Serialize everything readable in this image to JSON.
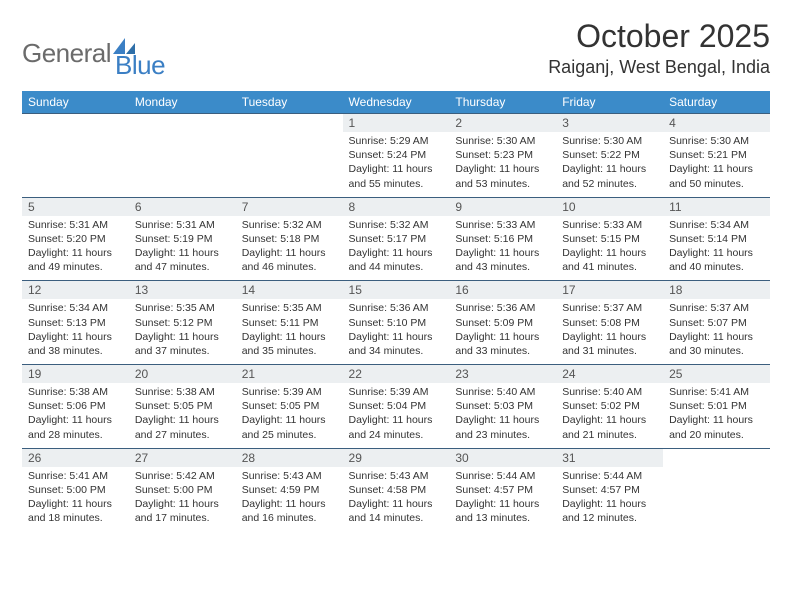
{
  "brand": {
    "part1": "General",
    "part2": "Blue"
  },
  "title": "October 2025",
  "location": "Raiganj, West Bengal, India",
  "colors": {
    "header_blue": "#3b8bc9",
    "row_border": "#3b5e7e",
    "daynum_bg": "#eceff1",
    "logo_gray": "#6b6b6b",
    "logo_blue": "#3b7fc4",
    "text": "#333333",
    "bg": "#ffffff"
  },
  "font": {
    "family": "Arial",
    "th_size": 12,
    "cell_size": 10.5,
    "title_size": 32,
    "loc_size": 18
  },
  "weekdays": [
    "Sunday",
    "Monday",
    "Tuesday",
    "Wednesday",
    "Thursday",
    "Friday",
    "Saturday"
  ],
  "weeks": [
    [
      null,
      null,
      null,
      {
        "n": "1",
        "sr": "5:29 AM",
        "ss": "5:24 PM",
        "dh": "11",
        "dm": "55"
      },
      {
        "n": "2",
        "sr": "5:30 AM",
        "ss": "5:23 PM",
        "dh": "11",
        "dm": "53"
      },
      {
        "n": "3",
        "sr": "5:30 AM",
        "ss": "5:22 PM",
        "dh": "11",
        "dm": "52"
      },
      {
        "n": "4",
        "sr": "5:30 AM",
        "ss": "5:21 PM",
        "dh": "11",
        "dm": "50"
      }
    ],
    [
      {
        "n": "5",
        "sr": "5:31 AM",
        "ss": "5:20 PM",
        "dh": "11",
        "dm": "49"
      },
      {
        "n": "6",
        "sr": "5:31 AM",
        "ss": "5:19 PM",
        "dh": "11",
        "dm": "47"
      },
      {
        "n": "7",
        "sr": "5:32 AM",
        "ss": "5:18 PM",
        "dh": "11",
        "dm": "46"
      },
      {
        "n": "8",
        "sr": "5:32 AM",
        "ss": "5:17 PM",
        "dh": "11",
        "dm": "44"
      },
      {
        "n": "9",
        "sr": "5:33 AM",
        "ss": "5:16 PM",
        "dh": "11",
        "dm": "43"
      },
      {
        "n": "10",
        "sr": "5:33 AM",
        "ss": "5:15 PM",
        "dh": "11",
        "dm": "41"
      },
      {
        "n": "11",
        "sr": "5:34 AM",
        "ss": "5:14 PM",
        "dh": "11",
        "dm": "40"
      }
    ],
    [
      {
        "n": "12",
        "sr": "5:34 AM",
        "ss": "5:13 PM",
        "dh": "11",
        "dm": "38"
      },
      {
        "n": "13",
        "sr": "5:35 AM",
        "ss": "5:12 PM",
        "dh": "11",
        "dm": "37"
      },
      {
        "n": "14",
        "sr": "5:35 AM",
        "ss": "5:11 PM",
        "dh": "11",
        "dm": "35"
      },
      {
        "n": "15",
        "sr": "5:36 AM",
        "ss": "5:10 PM",
        "dh": "11",
        "dm": "34"
      },
      {
        "n": "16",
        "sr": "5:36 AM",
        "ss": "5:09 PM",
        "dh": "11",
        "dm": "33"
      },
      {
        "n": "17",
        "sr": "5:37 AM",
        "ss": "5:08 PM",
        "dh": "11",
        "dm": "31"
      },
      {
        "n": "18",
        "sr": "5:37 AM",
        "ss": "5:07 PM",
        "dh": "11",
        "dm": "30"
      }
    ],
    [
      {
        "n": "19",
        "sr": "5:38 AM",
        "ss": "5:06 PM",
        "dh": "11",
        "dm": "28"
      },
      {
        "n": "20",
        "sr": "5:38 AM",
        "ss": "5:05 PM",
        "dh": "11",
        "dm": "27"
      },
      {
        "n": "21",
        "sr": "5:39 AM",
        "ss": "5:05 PM",
        "dh": "11",
        "dm": "25"
      },
      {
        "n": "22",
        "sr": "5:39 AM",
        "ss": "5:04 PM",
        "dh": "11",
        "dm": "24"
      },
      {
        "n": "23",
        "sr": "5:40 AM",
        "ss": "5:03 PM",
        "dh": "11",
        "dm": "23"
      },
      {
        "n": "24",
        "sr": "5:40 AM",
        "ss": "5:02 PM",
        "dh": "11",
        "dm": "21"
      },
      {
        "n": "25",
        "sr": "5:41 AM",
        "ss": "5:01 PM",
        "dh": "11",
        "dm": "20"
      }
    ],
    [
      {
        "n": "26",
        "sr": "5:41 AM",
        "ss": "5:00 PM",
        "dh": "11",
        "dm": "18"
      },
      {
        "n": "27",
        "sr": "5:42 AM",
        "ss": "5:00 PM",
        "dh": "11",
        "dm": "17"
      },
      {
        "n": "28",
        "sr": "5:43 AM",
        "ss": "4:59 PM",
        "dh": "11",
        "dm": "16"
      },
      {
        "n": "29",
        "sr": "5:43 AM",
        "ss": "4:58 PM",
        "dh": "11",
        "dm": "14"
      },
      {
        "n": "30",
        "sr": "5:44 AM",
        "ss": "4:57 PM",
        "dh": "11",
        "dm": "13"
      },
      {
        "n": "31",
        "sr": "5:44 AM",
        "ss": "4:57 PM",
        "dh": "11",
        "dm": "12"
      },
      null
    ]
  ]
}
